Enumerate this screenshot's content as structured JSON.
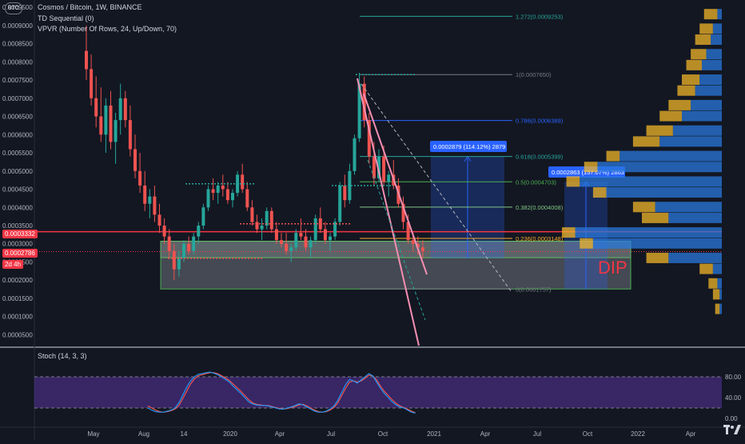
{
  "header": {
    "symbol_badge": "BTC",
    "title": "Cosmos / Bitcoin, 1W, BINANCE",
    "indicator1": "TD Sequential (0)",
    "indicator2": "VPVR (Number Of Rows, 24, Up/Down, 70)"
  },
  "price_tags": {
    "red_line": "0.0003332",
    "last_price": "0.0002786",
    "countdown": "2d 4h"
  },
  "annotations": {
    "measure1": "0.0002879 (114.12%) 2879",
    "measure2": "0.0002863 (157.07%) 2863",
    "dip": "DIP"
  },
  "stoch": {
    "label": "Stoch (14, 3, 3)",
    "ticks": [
      "80.00",
      "40.00",
      "0.00"
    ],
    "k": [
      20,
      16,
      13,
      12,
      12,
      14,
      16,
      20,
      30,
      45,
      60,
      72,
      80,
      85,
      86,
      88,
      89,
      87,
      84,
      80,
      75,
      70,
      62,
      55,
      48,
      40,
      32,
      28,
      26,
      25,
      25,
      24,
      22,
      20,
      18,
      18,
      20,
      22,
      25,
      28,
      26,
      22,
      18,
      14,
      12,
      12,
      14,
      18,
      24,
      35,
      50,
      65,
      75,
      72,
      68,
      74,
      80,
      86,
      82,
      70,
      58,
      48,
      40,
      32,
      26,
      22,
      20,
      16,
      12,
      10
    ],
    "d": [
      24,
      20,
      16,
      13,
      12,
      13,
      15,
      18,
      25,
      38,
      52,
      66,
      76,
      82,
      84,
      86,
      88,
      88,
      86,
      82,
      78,
      73,
      66,
      59,
      52,
      44,
      36,
      30,
      27,
      26,
      25,
      25,
      23,
      21,
      19,
      18,
      19,
      21,
      23,
      26,
      27,
      24,
      20,
      16,
      13,
      12,
      13,
      16,
      21,
      30,
      44,
      58,
      70,
      72,
      70,
      72,
      77,
      83,
      82,
      74,
      62,
      52,
      44,
      36,
      29,
      24,
      21,
      18,
      14,
      11
    ]
  },
  "chart_data": {
    "type": "candlestick",
    "title": "Cosmos / Bitcoin, 1W, BINANCE",
    "y_axis": {
      "range": [
        9e-05,
        0.00097
      ],
      "ticks": [
        "0.0009500",
        "0.0009000",
        "0.0008500",
        "0.0008000",
        "0.0007500",
        "0.0007000",
        "0.0006500",
        "0.0006000",
        "0.0005500",
        "0.0005000",
        "0.0004500",
        "0.0004000",
        "0.0003500",
        "0.0003000",
        "0.0002500",
        "0.0002000",
        "0.0001500",
        "0.0001000",
        "0.0000500"
      ]
    },
    "x_axis": {
      "ticks": [
        "May",
        "Aug",
        "14",
        "2020",
        "Apr",
        "Jul",
        "Oct",
        "2021",
        "Apr",
        "Jul",
        "Oct",
        "2022",
        "Apr"
      ]
    },
    "fib_levels": [
      {
        "ratio": "1.272",
        "price": "0.0009253",
        "color": "#26a69a"
      },
      {
        "ratio": "1",
        "price": "0.0007650",
        "color": "#787b86"
      },
      {
        "ratio": "0.786",
        "price": "0.0006389",
        "color": "#2962ff"
      },
      {
        "ratio": "0.618",
        "price": "0.0005399",
        "color": "#26a69a"
      },
      {
        "ratio": "0.5",
        "price": "0.0004703",
        "color": "#4caf50"
      },
      {
        "ratio": "0.382",
        "price": "0.0004008",
        "color": "#81c784"
      },
      {
        "ratio": "0.236",
        "price": "0.0003148",
        "color": "#f9a825"
      },
      {
        "ratio": "0",
        "price": "0.0001757",
        "color": "#787b86"
      }
    ],
    "candles": [
      [
        0.00083,
        0.0009,
        0.00075,
        0.00078
      ],
      [
        0.00078,
        0.00082,
        0.00068,
        0.0007
      ],
      [
        0.0007,
        0.00076,
        0.00062,
        0.00065
      ],
      [
        0.00065,
        0.00073,
        0.00058,
        0.0006
      ],
      [
        0.0006,
        0.0007,
        0.00055,
        0.00068
      ],
      [
        0.00068,
        0.00072,
        0.00056,
        0.00058
      ],
      [
        0.00058,
        0.00066,
        0.00052,
        0.00064
      ],
      [
        0.00064,
        0.00074,
        0.0006,
        0.0007
      ],
      [
        0.0007,
        0.00072,
        0.00062,
        0.00064
      ],
      [
        0.00064,
        0.00068,
        0.00054,
        0.00056
      ],
      [
        0.00056,
        0.0006,
        0.00048,
        0.0005
      ],
      [
        0.0005,
        0.00055,
        0.00044,
        0.00046
      ],
      [
        0.00046,
        0.0005,
        0.00039,
        0.00041
      ],
      [
        0.00041,
        0.00045,
        0.00037,
        0.00043
      ],
      [
        0.00043,
        0.00046,
        0.00036,
        0.00038
      ],
      [
        0.00038,
        0.00041,
        0.00033,
        0.00035
      ],
      [
        0.00035,
        0.00037,
        0.0003,
        0.00032
      ],
      [
        0.00032,
        0.00034,
        0.00026,
        0.00028
      ],
      [
        0.00028,
        0.0003,
        0.0002,
        0.00023
      ],
      [
        0.00023,
        0.00028,
        0.00021,
        0.00026
      ],
      [
        0.00026,
        0.00031,
        0.00025,
        0.0003
      ],
      [
        0.0003,
        0.00032,
        0.00027,
        0.00028
      ],
      [
        0.00028,
        0.00033,
        0.00027,
        0.00032
      ],
      [
        0.00032,
        0.00036,
        0.0003,
        0.00035
      ],
      [
        0.00035,
        0.00041,
        0.00034,
        0.0004
      ],
      [
        0.0004,
        0.00046,
        0.00039,
        0.00045
      ],
      [
        0.00045,
        0.00048,
        0.00042,
        0.00044
      ],
      [
        0.00044,
        0.00047,
        0.00041,
        0.00046
      ],
      [
        0.00046,
        0.00049,
        0.00043,
        0.00045
      ],
      [
        0.00045,
        0.00047,
        0.00041,
        0.00042
      ],
      [
        0.00042,
        0.00045,
        0.0004,
        0.00044
      ],
      [
        0.00044,
        0.0005,
        0.00043,
        0.00049
      ],
      [
        0.00049,
        0.00052,
        0.00044,
        0.00045
      ],
      [
        0.00045,
        0.00047,
        0.00039,
        0.0004
      ],
      [
        0.0004,
        0.00042,
        0.00035,
        0.00036
      ],
      [
        0.00036,
        0.00038,
        0.00033,
        0.00034
      ],
      [
        0.00034,
        0.00037,
        0.00031,
        0.00035
      ],
      [
        0.00035,
        0.0004,
        0.00034,
        0.00039
      ],
      [
        0.00039,
        0.0004,
        0.00033,
        0.00034
      ],
      [
        0.00034,
        0.00036,
        0.0003,
        0.00031
      ],
      [
        0.00031,
        0.00033,
        0.00029,
        0.0003
      ],
      [
        0.0003,
        0.00033,
        0.00027,
        0.00028
      ],
      [
        0.00028,
        0.0003,
        0.00025,
        0.00029
      ],
      [
        0.00029,
        0.00034,
        0.00028,
        0.00033
      ],
      [
        0.00033,
        0.00037,
        0.00031,
        0.00032
      ],
      [
        0.00032,
        0.00034,
        0.00028,
        0.00029
      ],
      [
        0.00029,
        0.00032,
        0.00026,
        0.00031
      ],
      [
        0.00031,
        0.00038,
        0.0003,
        0.00037
      ],
      [
        0.00037,
        0.0004,
        0.00033,
        0.00034
      ],
      [
        0.00034,
        0.00036,
        0.0003,
        0.00031
      ],
      [
        0.00031,
        0.00033,
        0.00028,
        0.00032
      ],
      [
        0.00032,
        0.00037,
        0.00031,
        0.00036
      ],
      [
        0.00036,
        0.00047,
        0.00035,
        0.00046
      ],
      [
        0.00046,
        0.00049,
        0.0004,
        0.00042
      ],
      [
        0.00042,
        0.00052,
        0.00041,
        0.0005
      ],
      [
        0.0005,
        0.0006,
        0.00049,
        0.00059
      ],
      [
        0.00059,
        0.00077,
        0.00058,
        0.00074
      ],
      [
        0.00074,
        0.00076,
        0.00062,
        0.00064
      ],
      [
        0.00064,
        0.00066,
        0.00052,
        0.00054
      ],
      [
        0.00054,
        0.00058,
        0.00046,
        0.00048
      ],
      [
        0.00048,
        0.00056,
        0.00047,
        0.00054
      ],
      [
        0.00054,
        0.00057,
        0.00046,
        0.00047
      ],
      [
        0.00047,
        0.0005,
        0.00043,
        0.00049
      ],
      [
        0.00049,
        0.00053,
        0.00045,
        0.00046
      ],
      [
        0.00046,
        0.00048,
        0.0004,
        0.00041
      ],
      [
        0.00041,
        0.00043,
        0.00034,
        0.00036
      ],
      [
        0.00036,
        0.00038,
        0.0003,
        0.00031
      ],
      [
        0.00031,
        0.00033,
        0.00028,
        0.0003
      ],
      [
        0.0003,
        0.00032,
        0.00027,
        0.00029
      ],
      [
        0.00029,
        0.00031,
        0.00026,
        0.00028
      ]
    ],
    "volume_profile": [
      [
        0.00093,
        8e-05,
        2e-05
      ],
      [
        0.00089,
        0.0001,
        4e-05
      ],
      [
        0.00086,
        0.00012,
        5e-05
      ],
      [
        0.00082,
        0.00014,
        7e-05
      ],
      [
        0.00079,
        0.00016,
        9e-05
      ],
      [
        0.00075,
        0.00018,
        0.0001
      ],
      [
        0.00072,
        0.0002,
        0.00012
      ],
      [
        0.00068,
        0.00024,
        0.00014
      ],
      [
        0.00065,
        0.00028,
        0.00018
      ],
      [
        0.00061,
        0.00034,
        0.00022
      ],
      [
        0.00058,
        0.0004,
        0.00028
      ],
      [
        0.00054,
        0.00052,
        0.00046
      ],
      [
        0.00051,
        0.00062,
        0.00056
      ],
      [
        0.00047,
        0.0007,
        0.00064
      ],
      [
        0.00044,
        0.00058,
        0.00052
      ],
      [
        0.0004,
        0.0004,
        0.0003
      ],
      [
        0.00037,
        0.00036,
        0.00024
      ],
      [
        0.00033,
        0.00072,
        0.00066
      ],
      [
        0.0003,
        0.00064,
        0.00058
      ],
      [
        0.00026,
        0.00034,
        0.00024
      ],
      [
        0.00023,
        0.0001,
        4e-05
      ],
      [
        0.00019,
        6e-05,
        2e-05
      ],
      [
        0.00016,
        4e-05,
        1e-05
      ],
      [
        0.00012,
        3e-05,
        1e-05
      ]
    ]
  }
}
